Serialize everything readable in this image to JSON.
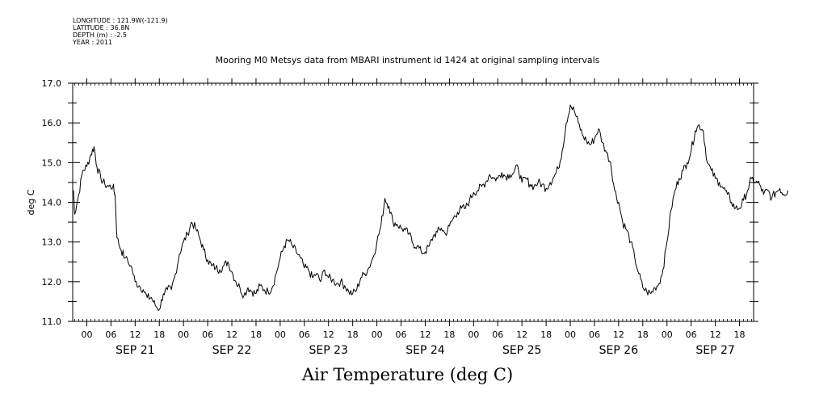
{
  "metadata": {
    "longitude": "LONGITUDE : 121.9W(-121.9)",
    "latitude": "LATITUDE : 36.8N",
    "depth": "DEPTH (m) : -2.5",
    "year": "YEAR : 2011"
  },
  "title": "Mooring M0 Metsys data from MBARI instrument id 1424 at original sampling intervals",
  "caption": "Air Temperature (deg C)",
  "chart_data": {
    "type": "line",
    "title": "Mooring M0 Metsys data from MBARI instrument id 1424 at original sampling intervals",
    "ylabel": "deg C",
    "xlabel": "Air Temperature (deg C)",
    "ylim": [
      11.0,
      17.0
    ],
    "yticks": [
      "11.0",
      "12.0",
      "13.0",
      "14.0",
      "15.0",
      "16.0",
      "17.0"
    ],
    "xlim_hours": [
      -3.5,
      165.5
    ],
    "x_hour_labels": [
      "00",
      "06",
      "12",
      "18"
    ],
    "day_labels": [
      "SEP 21",
      "SEP 22",
      "SEP 23",
      "SEP 24",
      "SEP 25",
      "SEP 26",
      "SEP 27"
    ],
    "grid": false,
    "series": [
      {
        "points": [
          [
            -3.3,
            14.3
          ],
          [
            -3,
            13.7
          ],
          [
            -2,
            14.2
          ],
          [
            -1,
            14.8
          ],
          [
            0,
            14.9
          ],
          [
            1,
            15.2
          ],
          [
            1.8,
            15.4
          ],
          [
            2.5,
            14.9
          ],
          [
            3.5,
            14.6
          ],
          [
            4.5,
            14.45
          ],
          [
            5.5,
            14.4
          ],
          [
            6.5,
            14.4
          ],
          [
            7,
            14.2
          ],
          [
            7.5,
            13.1
          ],
          [
            8.5,
            12.8
          ],
          [
            9.5,
            12.6
          ],
          [
            11,
            12.4
          ],
          [
            12,
            12.0
          ],
          [
            13,
            11.9
          ],
          [
            14,
            11.8
          ],
          [
            15,
            11.6
          ],
          [
            16,
            11.6
          ],
          [
            17,
            11.4
          ],
          [
            18,
            11.3
          ],
          [
            19,
            11.7
          ],
          [
            20,
            11.8
          ],
          [
            21,
            11.8
          ],
          [
            22,
            12.2
          ],
          [
            23,
            12.7
          ],
          [
            24,
            13.0
          ],
          [
            25,
            13.2
          ],
          [
            26,
            13.5
          ],
          [
            27,
            13.35
          ],
          [
            28,
            13.1
          ],
          [
            29,
            12.8
          ],
          [
            30,
            12.55
          ],
          [
            31,
            12.4
          ],
          [
            32,
            12.35
          ],
          [
            33,
            12.3
          ],
          [
            34,
            12.4
          ],
          [
            35,
            12.5
          ],
          [
            36,
            12.25
          ],
          [
            37,
            12.0
          ],
          [
            38,
            11.85
          ],
          [
            39,
            11.65
          ],
          [
            40,
            11.85
          ],
          [
            41,
            11.75
          ],
          [
            42,
            11.7
          ],
          [
            43,
            11.9
          ],
          [
            44,
            11.8
          ],
          [
            45,
            11.75
          ],
          [
            46,
            11.85
          ],
          [
            47,
            12.2
          ],
          [
            48,
            12.6
          ],
          [
            49,
            12.9
          ],
          [
            50,
            13.05
          ],
          [
            51,
            12.9
          ],
          [
            52,
            12.75
          ],
          [
            53,
            12.6
          ],
          [
            54,
            12.35
          ],
          [
            55,
            12.3
          ],
          [
            56,
            12.1
          ],
          [
            57,
            12.2
          ],
          [
            58,
            12.0
          ],
          [
            59,
            12.3
          ],
          [
            60,
            12.1
          ],
          [
            61,
            12.05
          ],
          [
            62,
            11.95
          ],
          [
            63,
            12.0
          ],
          [
            64,
            11.9
          ],
          [
            65,
            11.75
          ],
          [
            66,
            11.7
          ],
          [
            67,
            11.8
          ],
          [
            68,
            12.1
          ],
          [
            69,
            12.2
          ],
          [
            70,
            12.35
          ],
          [
            71,
            12.6
          ],
          [
            72,
            13.0
          ],
          [
            73,
            13.4
          ],
          [
            74,
            14.1
          ],
          [
            75,
            13.9
          ],
          [
            76,
            13.5
          ],
          [
            77,
            13.45
          ],
          [
            78,
            13.35
          ],
          [
            79,
            13.3
          ],
          [
            80,
            13.2
          ],
          [
            81,
            12.95
          ],
          [
            82,
            12.9
          ],
          [
            83,
            12.75
          ],
          [
            84,
            12.75
          ],
          [
            85,
            12.9
          ],
          [
            86,
            13.15
          ],
          [
            87,
            13.25
          ],
          [
            88,
            13.35
          ],
          [
            89,
            13.2
          ],
          [
            90,
            13.4
          ],
          [
            91,
            13.6
          ],
          [
            92,
            13.75
          ],
          [
            93,
            13.85
          ],
          [
            94,
            13.85
          ],
          [
            95,
            14.05
          ],
          [
            96,
            14.25
          ],
          [
            97,
            14.3
          ],
          [
            98,
            14.4
          ],
          [
            99,
            14.5
          ],
          [
            100,
            14.7
          ],
          [
            101,
            14.6
          ],
          [
            102,
            14.6
          ],
          [
            103,
            14.75
          ],
          [
            104,
            14.65
          ],
          [
            105,
            14.7
          ],
          [
            106,
            14.75
          ],
          [
            107,
            14.9
          ],
          [
            108,
            14.5
          ],
          [
            109,
            14.6
          ],
          [
            110,
            14.45
          ],
          [
            111,
            14.4
          ],
          [
            112,
            14.5
          ],
          [
            113,
            14.45
          ],
          [
            114,
            14.35
          ],
          [
            115,
            14.5
          ],
          [
            116,
            14.65
          ],
          [
            117,
            14.85
          ],
          [
            118,
            15.3
          ],
          [
            119,
            16.0
          ],
          [
            120,
            16.45
          ],
          [
            121,
            16.3
          ],
          [
            122,
            16.0
          ],
          [
            123,
            15.7
          ],
          [
            124,
            15.55
          ],
          [
            125,
            15.45
          ],
          [
            126,
            15.6
          ],
          [
            127,
            15.85
          ],
          [
            128,
            15.5
          ],
          [
            129,
            15.25
          ],
          [
            130,
            15.0
          ],
          [
            131,
            14.3
          ],
          [
            132,
            14.0
          ],
          [
            133,
            13.5
          ],
          [
            134,
            13.3
          ],
          [
            135,
            13.0
          ],
          [
            136,
            12.6
          ],
          [
            137,
            12.2
          ],
          [
            138,
            11.85
          ],
          [
            139,
            11.75
          ],
          [
            140,
            11.7
          ],
          [
            141,
            11.85
          ],
          [
            142,
            11.95
          ],
          [
            143,
            12.3
          ],
          [
            144,
            13.0
          ],
          [
            145,
            13.8
          ],
          [
            146,
            14.3
          ],
          [
            147,
            14.6
          ],
          [
            148,
            14.8
          ],
          [
            149,
            15.0
          ],
          [
            150,
            15.3
          ],
          [
            151,
            15.8
          ],
          [
            152,
            15.95
          ],
          [
            153,
            15.8
          ],
          [
            154,
            15.0
          ],
          [
            155,
            14.8
          ],
          [
            156,
            14.6
          ],
          [
            157,
            14.5
          ],
          [
            158,
            14.35
          ],
          [
            159,
            14.2
          ],
          [
            160,
            14.0
          ],
          [
            161,
            13.85
          ],
          [
            162,
            13.85
          ],
          [
            163,
            14.05
          ],
          [
            164,
            14.3
          ],
          [
            165,
            14.6
          ],
          [
            166,
            14.5
          ],
          [
            167,
            14.45
          ],
          [
            168,
            14.2
          ],
          [
            169,
            14.3
          ],
          [
            170,
            14.1
          ],
          [
            171,
            14.25
          ],
          [
            172,
            14.35
          ],
          [
            173,
            14.2
          ],
          [
            174,
            14.3
          ]
        ]
      }
    ]
  }
}
